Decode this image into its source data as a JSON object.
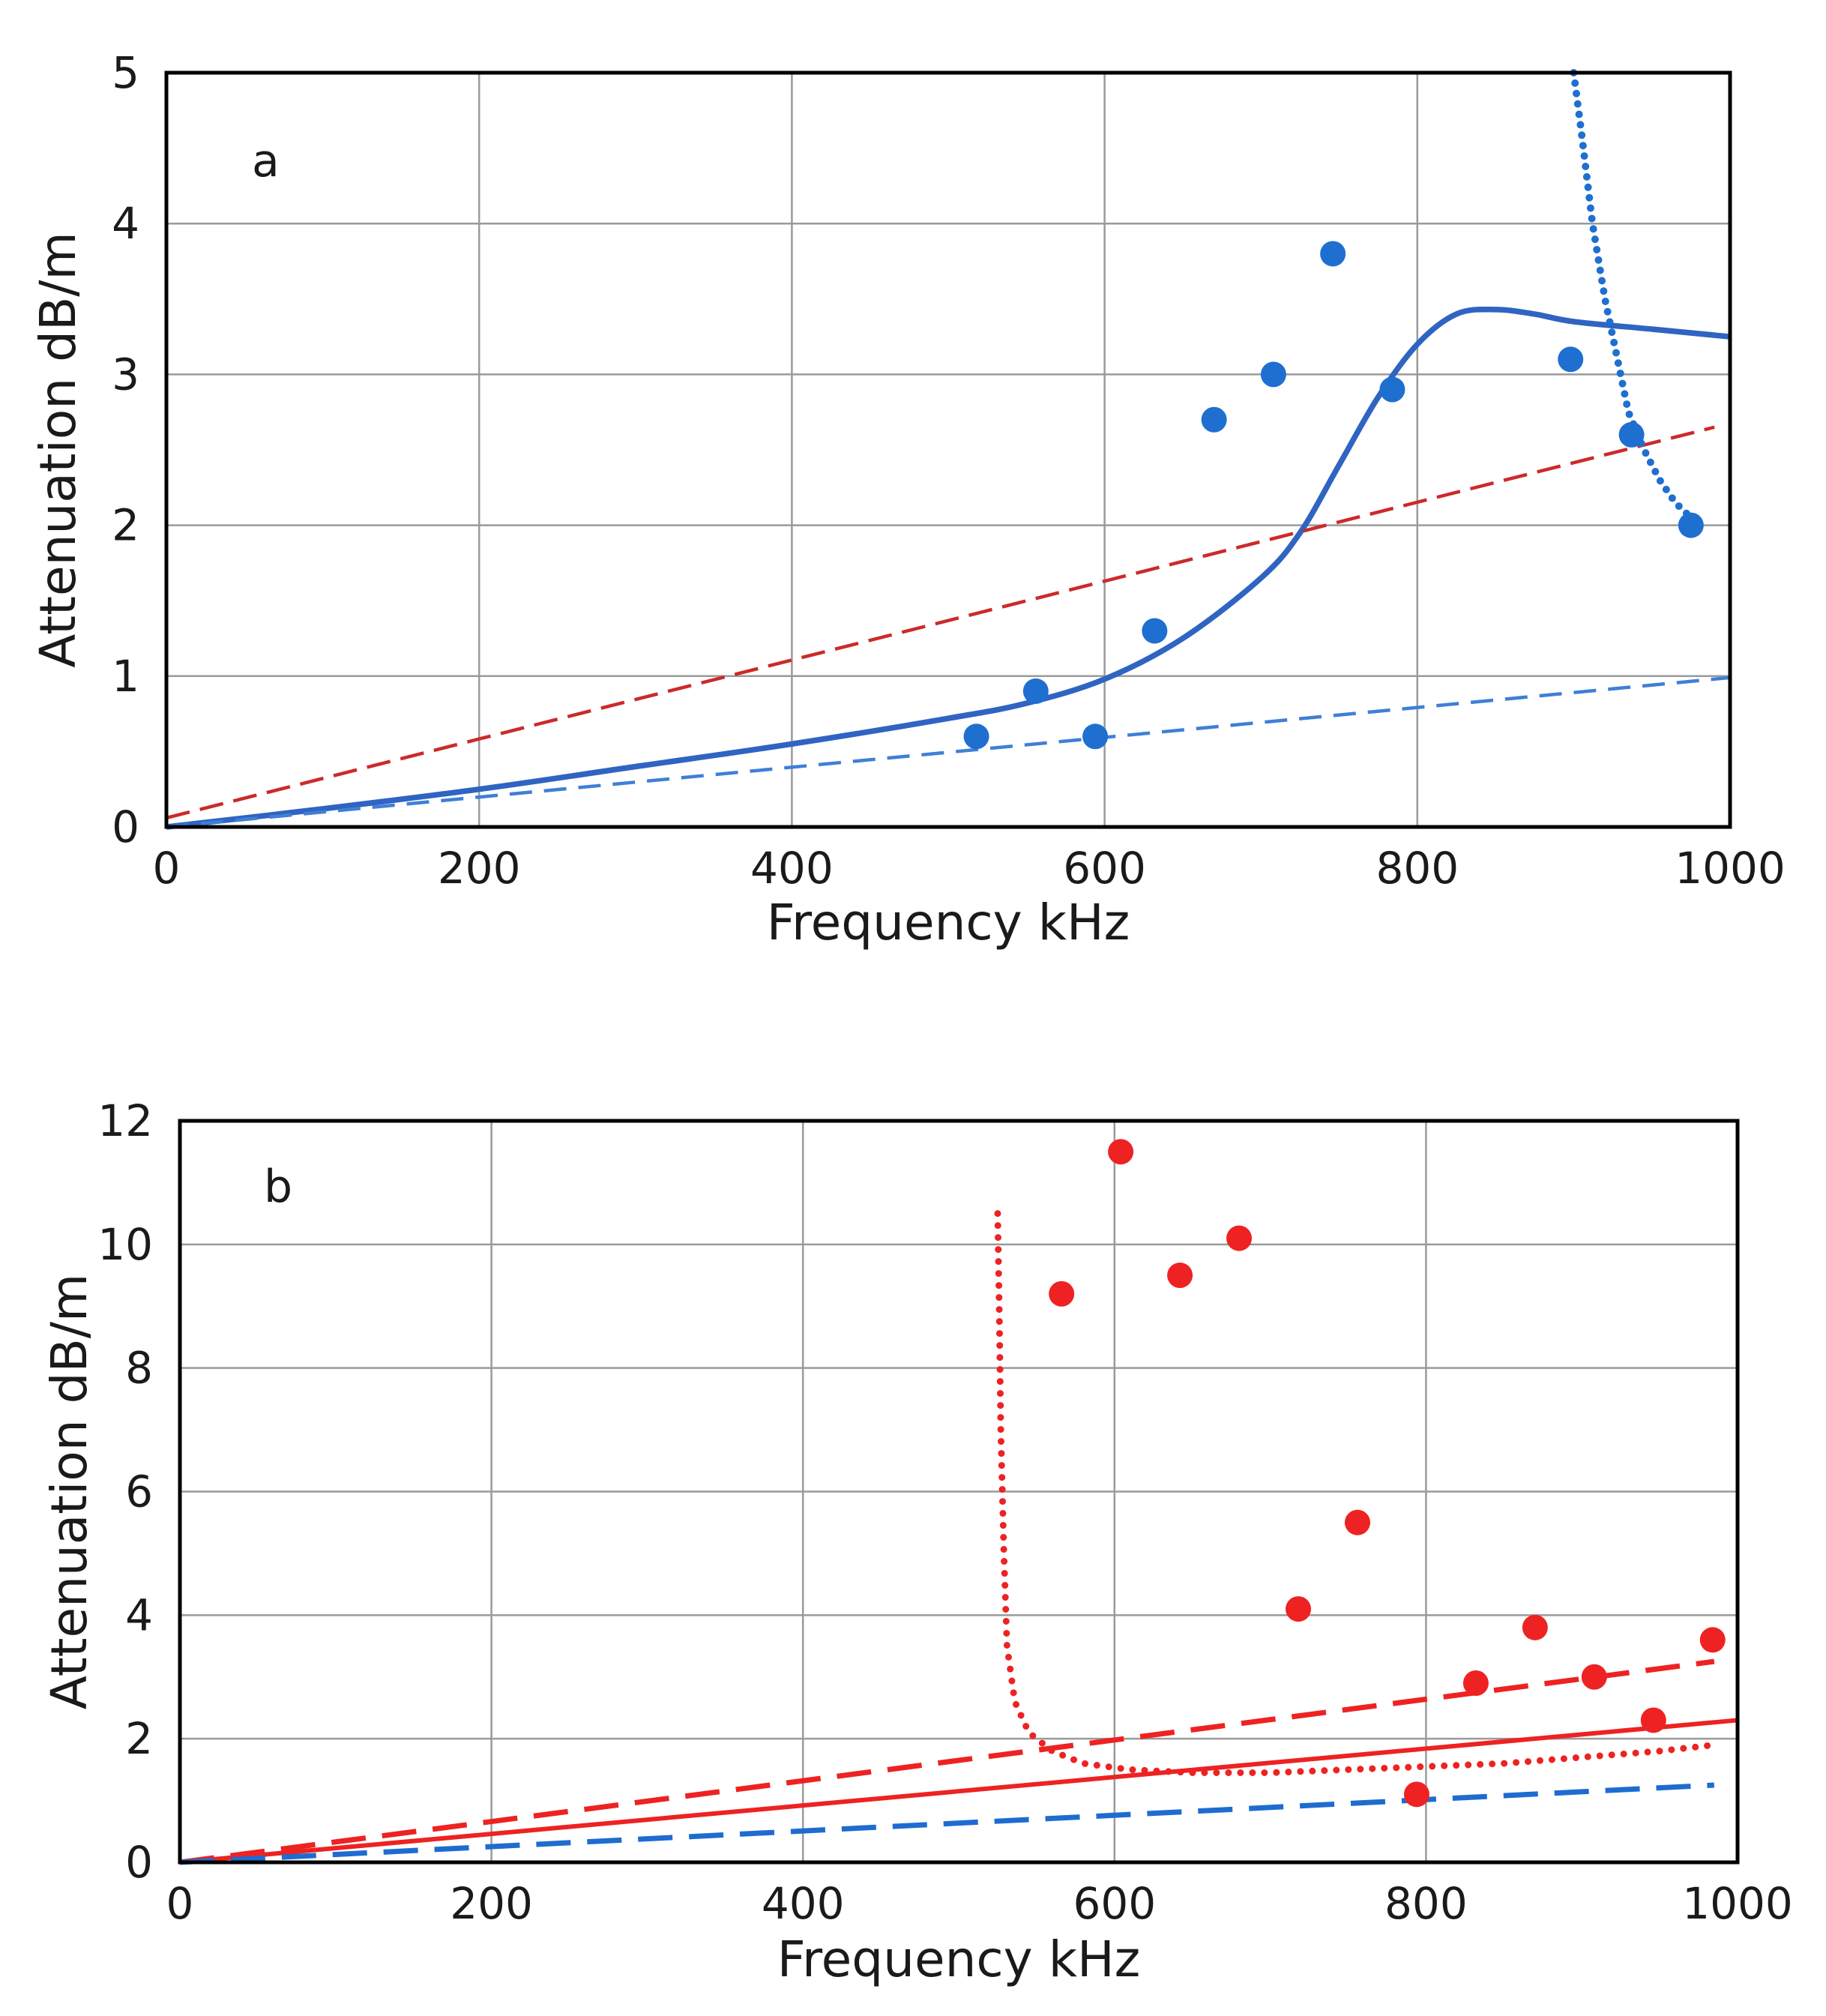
{
  "chart_data": [
    {
      "type": "line",
      "panel_label": "a",
      "xlabel": "Frequency  kHz",
      "ylabel": "Attenuation  dB/m",
      "xlim": [
        0,
        1000
      ],
      "ylim": [
        0,
        5
      ],
      "xticks": [
        0,
        200,
        400,
        600,
        800,
        1000
      ],
      "yticks": [
        0,
        1,
        2,
        3,
        4,
        5
      ],
      "grid": true,
      "colors": {
        "blue": "#2f64c2",
        "blue_light": "#3f7fd6",
        "red": "#cc2a2a",
        "dot_blue": "#1f6fd0"
      },
      "series": [
        {
          "style": "solid",
          "color": "blue",
          "x": [
            0,
            100,
            200,
            300,
            400,
            500,
            550,
            600,
            650,
            700,
            725,
            750,
            775,
            800,
            825,
            850,
            875,
            900,
            950,
            1000
          ],
          "y": [
            0,
            0.12,
            0.25,
            0.4,
            0.55,
            0.72,
            0.82,
            0.98,
            1.25,
            1.65,
            1.95,
            2.4,
            2.85,
            3.2,
            3.4,
            3.43,
            3.4,
            3.35,
            3.3,
            3.25
          ]
        },
        {
          "style": "dashed",
          "color": "blue_light",
          "x": [
            0,
            1000
          ],
          "y": [
            0,
            0.99
          ]
        },
        {
          "style": "dashed",
          "color": "red",
          "x": [
            0,
            990
          ],
          "y": [
            0.06,
            2.65
          ]
        },
        {
          "style": "dotted",
          "color": "dot_blue",
          "x": [
            900,
            905,
            912,
            920,
            928,
            935,
            945,
            955,
            965,
            975
          ],
          "y": [
            5.0,
            4.6,
            4.0,
            3.5,
            3.1,
            2.75,
            2.5,
            2.3,
            2.15,
            2.05
          ]
        },
        {
          "style": "markers",
          "color": "dot_blue",
          "x": [
            518,
            556,
            594,
            632,
            670,
            708,
            746,
            784,
            898,
            937,
            975
          ],
          "y": [
            0.6,
            0.9,
            0.6,
            1.3,
            2.7,
            3.0,
            3.8,
            2.9,
            3.1,
            2.6,
            2.0
          ]
        }
      ]
    },
    {
      "type": "line",
      "panel_label": "b",
      "xlabel": "Frequency  kHz",
      "ylabel": "Attenuation  dB/m",
      "xlim": [
        0,
        1000
      ],
      "ylim": [
        0,
        12
      ],
      "xticks": [
        0,
        200,
        400,
        600,
        800,
        1000
      ],
      "yticks": [
        0,
        2,
        4,
        6,
        8,
        10,
        12
      ],
      "grid": true,
      "colors": {
        "red": "#ee2222",
        "blue": "#1e6cd0"
      },
      "series": [
        {
          "style": "solid",
          "color": "red",
          "x": [
            0,
            1000
          ],
          "y": [
            0,
            2.3
          ]
        },
        {
          "style": "dashed",
          "color": "red",
          "x": [
            0,
            985
          ],
          "y": [
            0,
            3.25
          ]
        },
        {
          "style": "dashed",
          "color": "blue",
          "x": [
            0,
            985
          ],
          "y": [
            0,
            1.25
          ]
        },
        {
          "style": "dotted",
          "color": "red",
          "x": [
            525,
            526,
            527,
            529,
            531,
            536,
            545,
            560,
            580,
            610,
            650,
            700,
            750,
            800,
            850,
            900,
            950,
            985
          ],
          "y": [
            10.5,
            9.0,
            7.0,
            5.0,
            3.5,
            2.6,
            2.1,
            1.8,
            1.6,
            1.5,
            1.45,
            1.45,
            1.5,
            1.55,
            1.6,
            1.7,
            1.8,
            1.9
          ]
        },
        {
          "style": "markers",
          "color": "red",
          "x": [
            566,
            604,
            642,
            680,
            718,
            756,
            794,
            832,
            870,
            908,
            946,
            984
          ],
          "y": [
            9.2,
            11.5,
            9.5,
            10.1,
            4.1,
            5.5,
            1.1,
            2.9,
            3.8,
            3.0,
            2.3,
            3.6
          ]
        }
      ]
    }
  ]
}
